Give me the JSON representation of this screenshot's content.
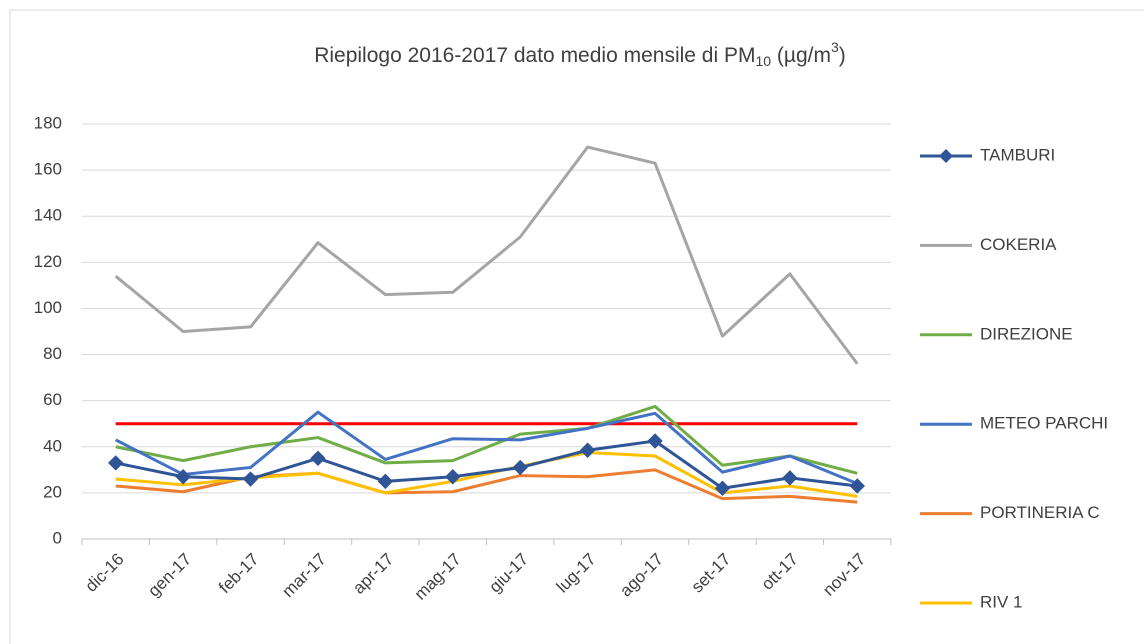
{
  "chart_data": {
    "type": "line",
    "title": {
      "text": "Riepilogo 2016-2017 dato medio mensile di PM",
      "sub": "10",
      "mid": "  (µg/m",
      "sup": "3",
      "end": ")"
    },
    "categories": [
      "dic-16",
      "gen-17",
      "feb-17",
      "mar-17",
      "apr-17",
      "mag-17",
      "giu-17",
      "lug-17",
      "ago-17",
      "set-17",
      "ott-17",
      "nov-17"
    ],
    "series": [
      {
        "name": "TAMBURI",
        "color": "#2f5597",
        "marker": "diamond",
        "values": [
          33,
          27,
          26,
          35,
          25,
          27,
          31,
          38.5,
          42.5,
          22,
          26.5,
          23
        ]
      },
      {
        "name": "COKERIA",
        "color": "#a5a5a5",
        "values": [
          114,
          90,
          92,
          128.5,
          106,
          107,
          131,
          170,
          163,
          88,
          115,
          76
        ]
      },
      {
        "name": "DIREZIONE",
        "color": "#70ad47",
        "values": [
          40,
          34,
          40,
          44,
          33,
          34,
          45.5,
          48,
          57.5,
          32,
          36,
          28.5
        ]
      },
      {
        "name": "METEO PARCHI",
        "color": "#4472c4",
        "values": [
          43,
          28,
          31,
          55,
          34.5,
          43.5,
          43,
          48,
          54.5,
          29,
          36,
          24
        ]
      },
      {
        "name": "PORTINERIA C",
        "color": "#ed7d31",
        "values": [
          23,
          20.5,
          27,
          28.5,
          20,
          20.5,
          27.5,
          27,
          30,
          17.5,
          18.5,
          16
        ]
      },
      {
        "name": "RIV 1",
        "color": "#ffc000",
        "values": [
          26,
          23.5,
          26.5,
          28.5,
          20,
          25,
          31.5,
          37.5,
          36,
          20,
          23,
          18.5
        ]
      }
    ],
    "limit": {
      "value": 50,
      "color": "#ff0000"
    },
    "ylim": [
      0,
      180
    ],
    "yticks": [
      0,
      20,
      40,
      60,
      80,
      100,
      120,
      140,
      160,
      180
    ],
    "grid": true,
    "legend": "right"
  }
}
